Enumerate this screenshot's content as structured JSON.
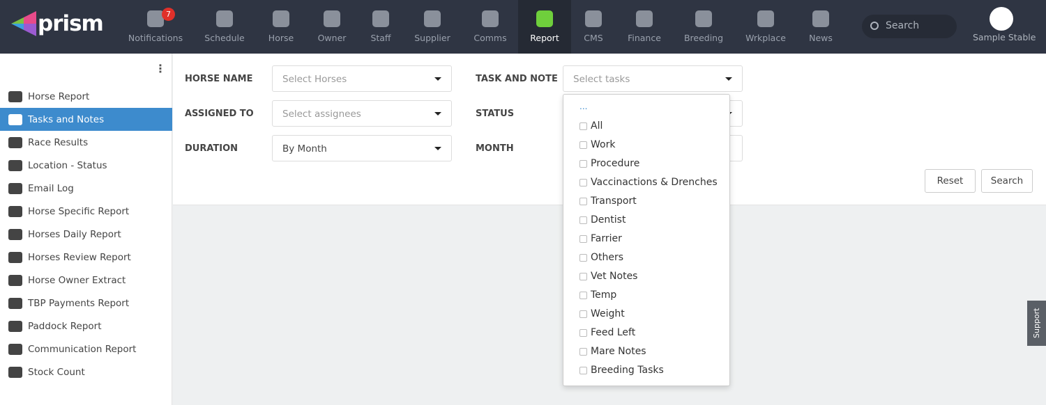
{
  "header": {
    "logo": "prism",
    "nav": [
      {
        "label": "Notifications",
        "icon": "bell-icon",
        "badge": "7"
      },
      {
        "label": "Schedule",
        "icon": "calendar-icon"
      },
      {
        "label": "Horse",
        "icon": "horse-icon"
      },
      {
        "label": "Owner",
        "icon": "user-icon"
      },
      {
        "label": "Staff",
        "icon": "users-icon"
      },
      {
        "label": "Supplier",
        "icon": "supplier-icon"
      },
      {
        "label": "Comms",
        "icon": "chat-icon"
      },
      {
        "label": "Report",
        "icon": "report-icon",
        "active": true
      },
      {
        "label": "CMS",
        "icon": "gear-icon"
      },
      {
        "label": "Finance",
        "icon": "finance-icon"
      },
      {
        "label": "Breeding",
        "icon": "breeding-icon"
      },
      {
        "label": "Wrkplace",
        "icon": "workplace-icon"
      },
      {
        "label": "News",
        "icon": "news-icon"
      }
    ],
    "search_placeholder": "Search",
    "account": "Sample Stable"
  },
  "sidebar": {
    "items": [
      {
        "label": "Horse Report"
      },
      {
        "label": "Tasks and Notes",
        "active": true
      },
      {
        "label": "Race Results"
      },
      {
        "label": "Location - Status"
      },
      {
        "label": "Email Log"
      },
      {
        "label": "Horse Specific Report"
      },
      {
        "label": "Horses Daily Report"
      },
      {
        "label": "Horses Review Report"
      },
      {
        "label": "Horse Owner Extract"
      },
      {
        "label": "TBP Payments Report"
      },
      {
        "label": "Paddock Report"
      },
      {
        "label": "Communication Report"
      },
      {
        "label": "Stock Count"
      }
    ]
  },
  "filters": {
    "horse_name": {
      "label": "HORSE NAME",
      "placeholder": "Select Horses"
    },
    "assigned_to": {
      "label": "ASSIGNED TO",
      "placeholder": "Select assignees"
    },
    "duration": {
      "label": "DURATION",
      "value": "By Month"
    },
    "task_and_note": {
      "label": "TASK AND NOTE",
      "placeholder": "Select tasks"
    },
    "status": {
      "label": "STATUS"
    },
    "month": {
      "label": "MONTH"
    },
    "reset": "Reset",
    "search": "Search"
  },
  "dropdown": {
    "ellipsis": "...",
    "options": [
      "All",
      "Work",
      "Procedure",
      "Vaccinactions & Drenches",
      "Transport",
      "Dentist",
      "Farrier",
      "Others",
      "Vet Notes",
      "Temp",
      "Weight",
      "Feed Left",
      "Mare Notes",
      "Breeding Tasks"
    ]
  },
  "support": "Support",
  "colors": {
    "header": "#2f3543",
    "accent": "#3d8bcd",
    "active_icon": "#6fcf3c"
  }
}
